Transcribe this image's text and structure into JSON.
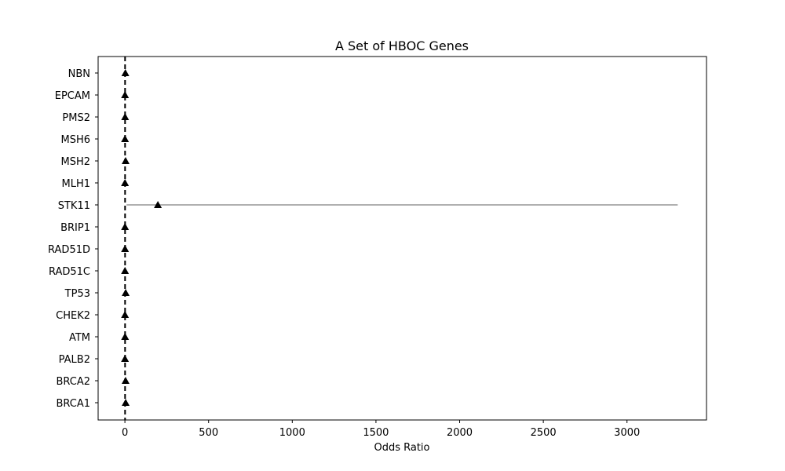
{
  "chart_data": {
    "type": "scatter",
    "title": "A Set of HBOC Genes",
    "xlabel": "Odds Ratio",
    "ylabel": "",
    "xlim": [
      -160,
      3475
    ],
    "x_ticks": [
      0,
      500,
      1000,
      1500,
      2000,
      2500,
      3000
    ],
    "reference_line_x": 1,
    "grid": false,
    "categories": [
      "NBN",
      "EPCAM",
      "PMS2",
      "MSH6",
      "MSH2",
      "MLH1",
      "STK11",
      "BRIP1",
      "RAD51D",
      "RAD51C",
      "TP53",
      "CHEK2",
      "ATM",
      "PALB2",
      "BRCA2",
      "BRCA1"
    ],
    "points": [
      {
        "gene": "NBN",
        "or": 2.7,
        "ci_low": 1.9,
        "ci_high": 3.7
      },
      {
        "gene": "EPCAM",
        "or": 0.6,
        "ci_low": 0.3,
        "ci_high": 1.2
      },
      {
        "gene": "PMS2",
        "or": 1.1,
        "ci_low": 0.7,
        "ci_high": 1.8
      },
      {
        "gene": "MSH6",
        "or": 0.6,
        "ci_low": 0.3,
        "ci_high": 1.1
      },
      {
        "gene": "MSH2",
        "or": 4.2,
        "ci_low": 2.8,
        "ci_high": 6.0
      },
      {
        "gene": "MLH1",
        "or": 0.4,
        "ci_low": 0.2,
        "ci_high": 0.8
      },
      {
        "gene": "STK11",
        "or": 197,
        "ci_low": 10,
        "ci_high": 3303
      },
      {
        "gene": "BRIP1",
        "or": 0.5,
        "ci_low": 0.3,
        "ci_high": 0.9
      },
      {
        "gene": "RAD51D",
        "or": 0.7,
        "ci_low": 0.4,
        "ci_high": 1.2
      },
      {
        "gene": "RAD51C",
        "or": 0.5,
        "ci_low": 0.3,
        "ci_high": 0.9
      },
      {
        "gene": "TP53",
        "or": 4.5,
        "ci_low": 3.0,
        "ci_high": 6.5
      },
      {
        "gene": "CHEK2",
        "or": 0.5,
        "ci_low": 0.3,
        "ci_high": 0.8
      },
      {
        "gene": "ATM",
        "or": 0.9,
        "ci_low": 0.5,
        "ci_high": 1.5
      },
      {
        "gene": "PALB2",
        "or": 0.4,
        "ci_low": 0.2,
        "ci_high": 0.8
      },
      {
        "gene": "BRCA2",
        "or": 4.0,
        "ci_low": 2.9,
        "ci_high": 5.5
      },
      {
        "gene": "BRCA1",
        "or": 4.5,
        "ci_low": 3.2,
        "ci_high": 6.3
      }
    ],
    "colors": {
      "marker": "#000000",
      "ci_line": "#808080",
      "reference_line": "#000000",
      "frame": "#000000"
    }
  }
}
